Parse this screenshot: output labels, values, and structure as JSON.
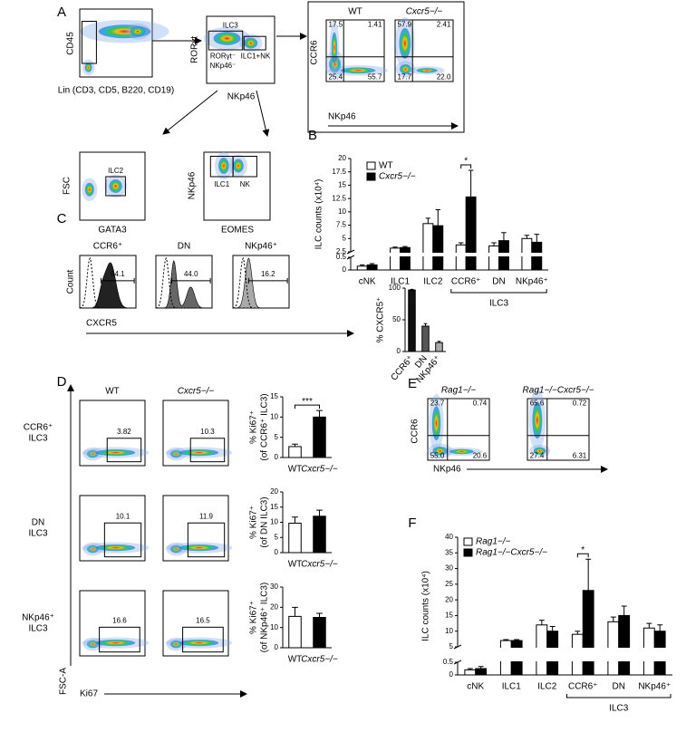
{
  "panel_labels": [
    "A",
    "B",
    "C",
    "D",
    "E",
    "F"
  ],
  "panel_a": {
    "lin_plot": {
      "y_label": "CD45",
      "x_label": "Lin (CD3, CD5, B220, CD19)"
    },
    "ror_plot": {
      "y_label": "RORγt",
      "x_label": "NKp46",
      "gates": [
        "ILC3",
        "RORγt⁻",
        "NKp46⁻",
        "ILC1+NK"
      ]
    },
    "ccr6_plots": {
      "y_label": "CCR6",
      "x_label": "NKp46",
      "samples": [
        {
          "name": "WT",
          "quadrants": [
            "17.5",
            "1.41",
            "25.4",
            "55.7"
          ]
        },
        {
          "name": "Cxcr5−/−",
          "quadrants": [
            "57.9",
            "2.41",
            "17.7",
            "22.0"
          ]
        }
      ]
    },
    "ilc2_plot": {
      "y_label": "FSC",
      "x_label": "GATA3",
      "gates": [
        "ILC2"
      ]
    },
    "nk_plot": {
      "y_label": "NKp46",
      "x_label": "EOMES",
      "gates": [
        "ILC1",
        "NK"
      ]
    }
  },
  "panel_c": {
    "y_label": "Count",
    "x_label": "CXCR5",
    "histograms": [
      {
        "title": "CCR6⁺",
        "gate": "94.1"
      },
      {
        "title": "DN",
        "gate": "44.0"
      },
      {
        "title": "NKp46⁺",
        "gate": "16.2"
      }
    ]
  },
  "panel_d": {
    "y_label": "FSC-A",
    "x_label": "Ki67",
    "columns": [
      "WT",
      "Cxcr5−/−"
    ],
    "rows": [
      {
        "label": [
          "CCR6⁺",
          "ILC3"
        ],
        "gates": [
          "3.82",
          "10.3"
        ]
      },
      {
        "label": [
          "DN",
          "ILC3"
        ],
        "gates": [
          "10.1",
          "11.9"
        ]
      },
      {
        "label": [
          "NKp46⁺",
          "ILC3"
        ],
        "gates": [
          "16.6",
          "16.5"
        ]
      }
    ]
  },
  "panel_e": {
    "y_label": "CCR6",
    "x_label": "NKp46",
    "samples": [
      {
        "name": "Rag1−/−",
        "quadrants": [
          "23.7",
          "0.74",
          "55.0",
          "20.6"
        ]
      },
      {
        "name": "Rag1−/−Cxcr5−/−",
        "quadrants": [
          "65.6",
          "0.72",
          "27.4",
          "6.31"
        ]
      }
    ]
  },
  "chart_data": [
    {
      "type": "bar",
      "y_label": "ILC counts (x10⁴)",
      "categories": [
        "cNK",
        "ILC1",
        "ILC2",
        "CCR6⁺",
        "DN",
        "NKp46⁺"
      ],
      "groups": [
        {
          "label": "ILC3",
          "categories": [
            "CCR6⁺",
            "DN",
            "NKp46⁺"
          ]
        }
      ],
      "series": [
        {
          "name": "WT",
          "color": "#ffffff",
          "values": [
            0.15,
            3.2,
            7.8,
            3.8,
            3.6,
            5.0
          ],
          "errors": [
            0.05,
            0.2,
            1.0,
            0.4,
            0.6,
            0.6
          ]
        },
        {
          "name": "Cxcr5−/−",
          "color": "#000000",
          "values": [
            0.2,
            3.3,
            7.4,
            12.8,
            4.6,
            4.3
          ],
          "errors": [
            0.05,
            0.2,
            3.0,
            5.0,
            1.5,
            1.5
          ]
        }
      ],
      "ylim": [
        0,
        20
      ],
      "ybreak": [
        0.5,
        2.5
      ],
      "yticks": [
        0,
        0.5,
        2.5,
        5,
        7.5,
        10,
        12.5,
        15,
        17.5,
        20
      ],
      "annotations": [
        {
          "text": "*",
          "categories": [
            "CCR6⁺"
          ]
        }
      ]
    },
    {
      "type": "bar",
      "y_label": "% CXCR5⁺",
      "categories": [
        "CCR6⁺",
        "DN",
        "NKp46⁺"
      ],
      "series": [
        {
          "colors": [
            "#111111",
            "#555555",
            "#aaaaaa"
          ],
          "values": [
            97,
            40,
            14
          ],
          "errors": [
            1,
            4,
            2
          ]
        }
      ],
      "ylim": [
        0,
        100
      ],
      "yticks": [
        0,
        50,
        100
      ]
    },
    {
      "type": "bar",
      "y_label": [
        "% Ki67⁺",
        "(of CCR6⁺ ILC3)"
      ],
      "categories": [
        "WT",
        "Cxcr5−/−"
      ],
      "series": [
        {
          "colors": [
            "#ffffff",
            "#000000"
          ],
          "values": [
            2.7,
            10
          ],
          "errors": [
            0.6,
            1.6
          ]
        }
      ],
      "ylim": [
        0,
        15
      ],
      "yticks": [
        0,
        5,
        10,
        15
      ],
      "annotations": [
        {
          "text": "***",
          "categories": [
            "WT",
            "Cxcr5−/−"
          ]
        }
      ]
    },
    {
      "type": "bar",
      "y_label": [
        "% Ki67⁺",
        "(of DN ILC3)"
      ],
      "categories": [
        "WT",
        "Cxcr5−/−"
      ],
      "series": [
        {
          "colors": [
            "#ffffff",
            "#000000"
          ],
          "values": [
            9.7,
            12
          ],
          "errors": [
            2,
            2
          ]
        }
      ],
      "ylim": [
        0,
        20
      ],
      "yticks": [
        0,
        5,
        10,
        15,
        20
      ]
    },
    {
      "type": "bar",
      "y_label": [
        "% Ki67⁺",
        "(of NKp46⁺ ILC3)"
      ],
      "categories": [
        "WT",
        "Cxcr5−/−"
      ],
      "series": [
        {
          "colors": [
            "#ffffff",
            "#000000"
          ],
          "values": [
            15.5,
            15
          ],
          "errors": [
            4.5,
            2
          ]
        }
      ],
      "ylim": [
        0,
        30
      ],
      "yticks": [
        0,
        10,
        20,
        30
      ]
    },
    {
      "type": "bar",
      "y_label": "ILC counts (x10⁴)",
      "categories": [
        "cNK",
        "ILC1",
        "ILC2",
        "CCR6⁺",
        "DN",
        "NKp46⁺"
      ],
      "groups": [
        {
          "label": "ILC3",
          "categories": [
            "CCR6⁺",
            "DN",
            "NKp46⁺"
          ]
        }
      ],
      "series": [
        {
          "name": "Rag1−/−",
          "color": "#ffffff",
          "values": [
            0.2,
            7,
            12,
            9,
            13,
            11
          ],
          "errors": [
            0.05,
            0.3,
            1.5,
            1,
            1.5,
            1.5
          ]
        },
        {
          "name": "Rag1−/−Cxcr5−/−",
          "color": "#000000",
          "values": [
            0.25,
            7,
            10,
            23,
            15,
            10
          ],
          "errors": [
            0.08,
            0.3,
            1.5,
            10,
            3,
            2
          ]
        }
      ],
      "ylim": [
        0,
        40
      ],
      "ybreak": [
        0.5,
        5
      ],
      "yticks": [
        0,
        0.5,
        5,
        10,
        15,
        20,
        25,
        30,
        35,
        40
      ],
      "annotations": [
        {
          "text": "*",
          "categories": [
            "CCR6⁺"
          ]
        }
      ]
    }
  ]
}
